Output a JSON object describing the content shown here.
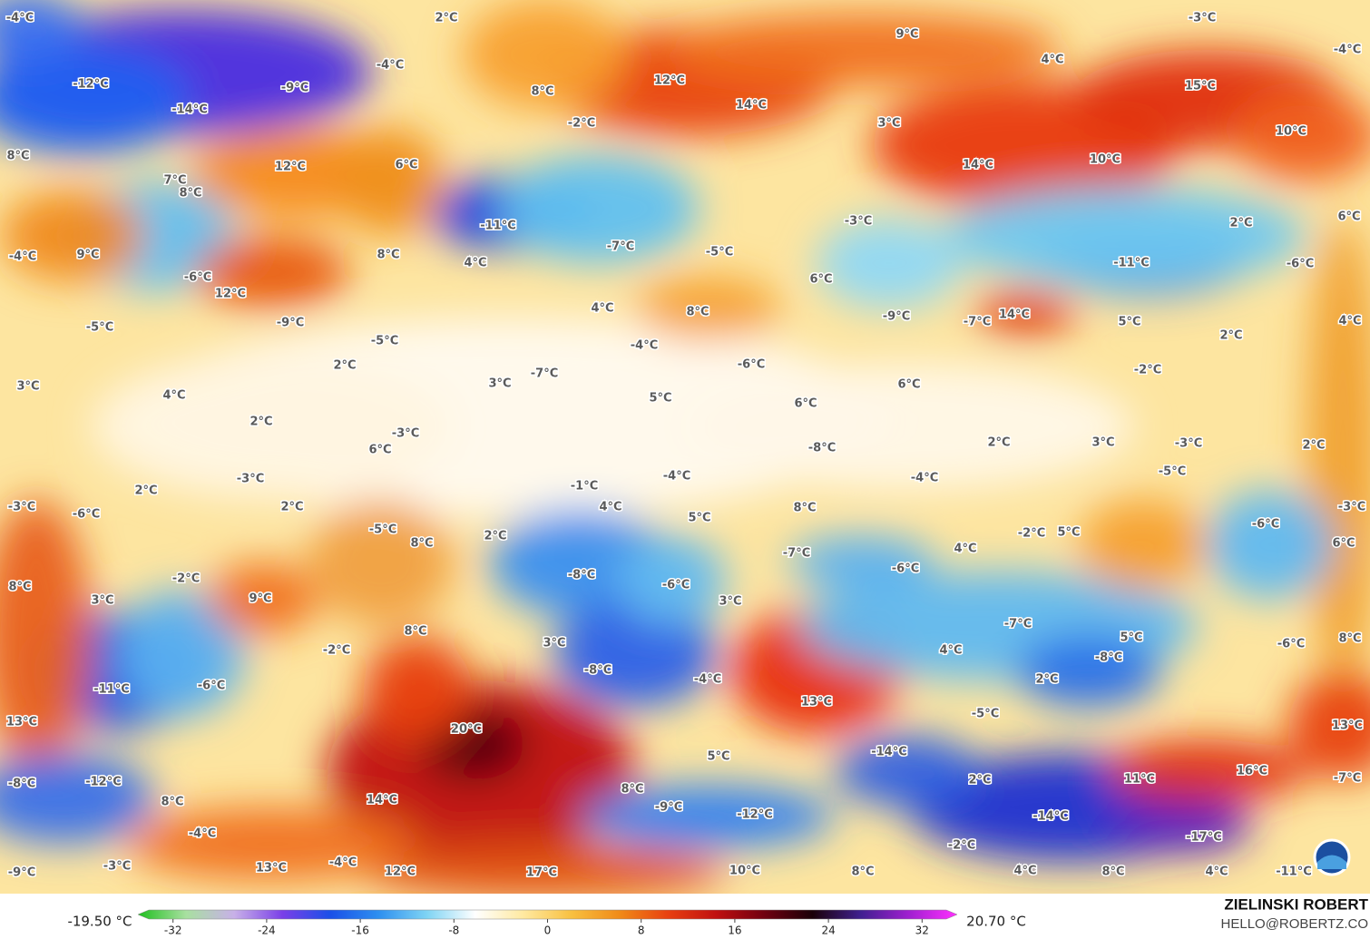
{
  "map": {
    "labels": [
      "-4°C",
      "2°C",
      "-3°C",
      "9°C",
      "-4°C",
      "4°C",
      "-4°C",
      "-12°C",
      "8°C",
      "12°C",
      "-9°C",
      "15°C",
      "-14°C",
      "14°C",
      "-2°C",
      "3°C",
      "10°C",
      "8°C",
      "12°C",
      "6°C",
      "14°C",
      "10°C",
      "7°C",
      "8°C",
      "-11°C",
      "-3°C",
      "2°C",
      "6°C",
      "-7°C",
      "-5°C",
      "-4°C",
      "9°C",
      "8°C",
      "4°C",
      "-11°C",
      "-6°C",
      "-6°C",
      "6°C",
      "12°C",
      "4°C",
      "8°C",
      "-9°C",
      "14°C",
      "5°C",
      "4°C",
      "-9°C",
      "-7°C",
      "-5°C",
      "-5°C",
      "-4°C",
      "2°C",
      "2°C",
      "-6°C",
      "-7°C",
      "3°C",
      "-2°C",
      "3°C",
      "4°C",
      "6°C",
      "5°C",
      "6°C",
      "2°C",
      "-3°C",
      "2°C",
      "3°C",
      "-3°C",
      "2°C",
      "6°C",
      "-8°C",
      "-3°C",
      "-4°C",
      "-4°C",
      "-5°C",
      "-1°C",
      "2°C",
      "-3°C",
      "2°C",
      "4°C",
      "-3°C",
      "-6°C",
      "5°C",
      "8°C",
      "-5°C",
      "-2°C",
      "5°C",
      "-6°C",
      "2°C",
      "8°C",
      "6°C",
      "4°C",
      "-7°C",
      "-8°C",
      "-6°C",
      "8°C",
      "-2°C",
      "-6°C",
      "3°C",
      "9°C",
      "3°C",
      "-7°C",
      "8°C",
      "5°C",
      "-6°C",
      "8°C",
      "3°C",
      "-2°C",
      "4°C",
      "-8°C",
      "-8°C",
      "-4°C",
      "2°C",
      "-6°C",
      "-11°C",
      "13°C",
      "-5°C",
      "13°C",
      "13°C",
      "20°C",
      "5°C",
      "-14°C",
      "11°C",
      "16°C",
      "-7°C",
      "2°C",
      "-8°C",
      "-12°C",
      "8°C",
      "8°C",
      "14°C",
      "-9°C",
      "-12°C",
      "-14°C",
      "-4°C",
      "-17°C",
      "-2°C",
      "-4°C",
      "-3°C",
      "-9°C",
      "13°C",
      "12°C",
      "17°C",
      "10°C",
      "8°C",
      "4°C",
      "8°C",
      "4°C",
      "-11°C"
    ]
  },
  "colorbar": {
    "min_label": "-19.50 °C",
    "max_label": "20.70 °C",
    "range": [
      -35,
      35
    ],
    "ticks": [
      -32,
      -24,
      -16,
      -8,
      0,
      8,
      16,
      24,
      32
    ],
    "colors": [
      "#1fbf1f",
      "#a8e0a0",
      "#c8b0e8",
      "#7a40e8",
      "#1a50e8",
      "#2e90f0",
      "#7fd4f4",
      "#ffffff",
      "#ffe9a0",
      "#f8c040",
      "#f08a18",
      "#e84010",
      "#c01010",
      "#700010",
      "#1a0008",
      "#402090",
      "#a020d0",
      "#ff30ff"
    ]
  },
  "credit": {
    "name": "ZIELINSKI ROBERT",
    "email": "HELLO@ROBERTZ.CO"
  }
}
